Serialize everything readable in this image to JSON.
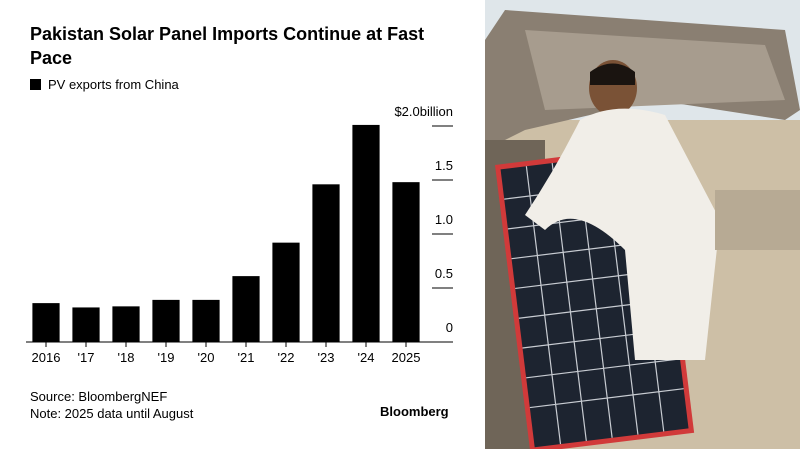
{
  "chart_data": {
    "type": "bar",
    "title": "Pakistan Solar Panel Imports Continue at Fast Pace",
    "categories": [
      "2016",
      "'17",
      "'18",
      "'19",
      "'20",
      "'21",
      "'22",
      "'23",
      "'24",
      "2025"
    ],
    "series": [
      {
        "name": "PV exports from China",
        "color": "#000000",
        "values": [
          0.36,
          0.32,
          0.33,
          0.39,
          0.39,
          0.61,
          0.92,
          1.46,
          2.01,
          1.48
        ]
      }
    ],
    "ylim": [
      0,
      2.0
    ],
    "yticks": [
      0,
      0.5,
      {
        "value": 1,
        "label": "1.0"
      },
      1.5,
      {
        "value": 2,
        "label": "$2.0billion"
      }
    ],
    "source": "Source: BloombergNEF",
    "note": "Note: 2025 data until August",
    "brand": "Bloomberg"
  }
}
